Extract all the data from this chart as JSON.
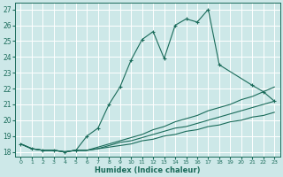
{
  "xlabel": "Humidex (Indice chaleur)",
  "bg_color": "#cde8e8",
  "grid_color": "#ffffff",
  "line_color": "#1a6b5a",
  "xlim": [
    -0.5,
    23.5
  ],
  "ylim": [
    17.7,
    27.4
  ],
  "yticks": [
    18,
    19,
    20,
    21,
    22,
    23,
    24,
    25,
    26,
    27
  ],
  "xticks": [
    0,
    1,
    2,
    3,
    4,
    5,
    6,
    7,
    8,
    9,
    10,
    11,
    12,
    13,
    14,
    15,
    16,
    17,
    18,
    19,
    20,
    21,
    22,
    23
  ],
  "lines": [
    {
      "x": [
        0,
        1,
        2,
        3,
        4,
        5,
        6,
        7,
        8,
        9,
        10,
        11,
        12,
        13,
        14,
        15,
        16,
        17,
        18,
        21,
        22,
        23
      ],
      "y": [
        18.5,
        18.2,
        18.1,
        18.1,
        18.0,
        18.1,
        19.0,
        19.5,
        21.0,
        22.1,
        23.8,
        25.1,
        25.6,
        23.9,
        26.0,
        26.4,
        26.2,
        27.0,
        23.5,
        22.2,
        21.8,
        21.2
      ],
      "marker": "+"
    },
    {
      "x": [
        0,
        1,
        2,
        3,
        4,
        5,
        6,
        7,
        8,
        9,
        10,
        11,
        12,
        13,
        14,
        15,
        16,
        17,
        18,
        19,
        20,
        21,
        22,
        23
      ],
      "y": [
        18.5,
        18.2,
        18.1,
        18.1,
        18.0,
        18.1,
        18.1,
        18.3,
        18.5,
        18.7,
        18.9,
        19.1,
        19.4,
        19.6,
        19.9,
        20.1,
        20.3,
        20.6,
        20.8,
        21.0,
        21.3,
        21.5,
        21.8,
        22.1
      ],
      "marker": null
    },
    {
      "x": [
        0,
        1,
        2,
        3,
        4,
        5,
        6,
        7,
        8,
        9,
        10,
        11,
        12,
        13,
        14,
        15,
        16,
        17,
        18,
        19,
        20,
        21,
        22,
        23
      ],
      "y": [
        18.5,
        18.2,
        18.1,
        18.1,
        18.0,
        18.1,
        18.1,
        18.2,
        18.4,
        18.6,
        18.7,
        18.9,
        19.1,
        19.3,
        19.5,
        19.6,
        19.8,
        20.0,
        20.2,
        20.4,
        20.6,
        20.8,
        21.0,
        21.2
      ],
      "marker": null
    },
    {
      "x": [
        0,
        1,
        2,
        3,
        4,
        5,
        6,
        7,
        8,
        9,
        10,
        11,
        12,
        13,
        14,
        15,
        16,
        17,
        18,
        19,
        20,
        21,
        22,
        23
      ],
      "y": [
        18.5,
        18.2,
        18.1,
        18.1,
        18.0,
        18.1,
        18.1,
        18.2,
        18.3,
        18.4,
        18.5,
        18.7,
        18.8,
        19.0,
        19.1,
        19.3,
        19.4,
        19.6,
        19.7,
        19.9,
        20.0,
        20.2,
        20.3,
        20.5
      ],
      "marker": null
    }
  ]
}
